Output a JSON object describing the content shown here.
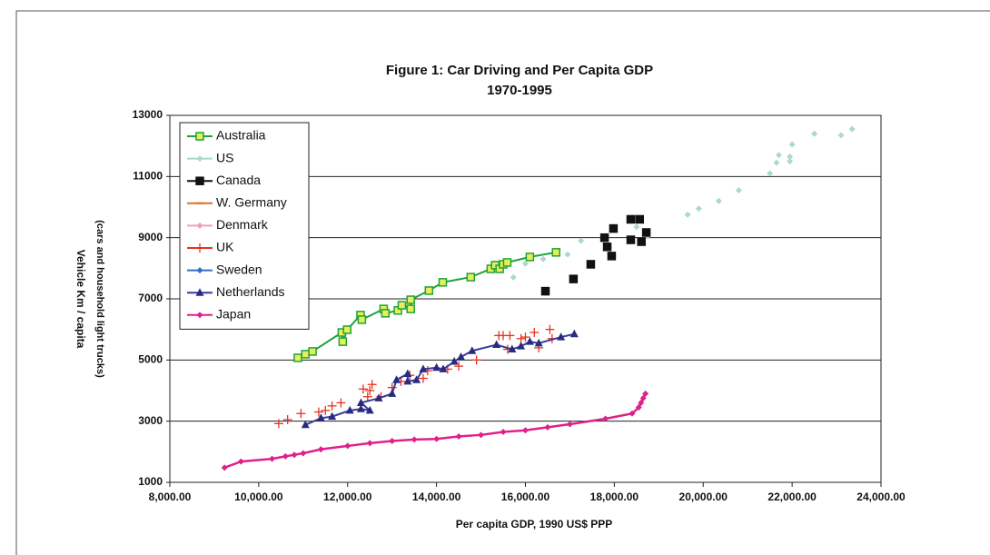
{
  "chart_data": {
    "type": "scatter",
    "title": "Figure 1: Car Driving and Per Capita GDP",
    "subtitle": "1970-1995",
    "x_label": "Per capita GDP, 1990 US$ PPP",
    "y_label": "Vehicle Km / capita",
    "y_label_2": "(cars and household light trucks)",
    "xlim": [
      8000,
      24000
    ],
    "ylim": [
      1000,
      13000
    ],
    "xticks": [
      {
        "value": 8000,
        "label": "8,000.00"
      },
      {
        "value": 10000,
        "label": "10,000.00"
      },
      {
        "value": 12000,
        "label": "12,000.00"
      },
      {
        "value": 14000,
        "label": "14,000.00"
      },
      {
        "value": 16000,
        "label": "16,000.00"
      },
      {
        "value": 18000,
        "label": "18,000.00"
      },
      {
        "value": 20000,
        "label": "20,000.00"
      },
      {
        "value": 22000,
        "label": "22,000.00"
      },
      {
        "value": 24000,
        "label": "24,000.00"
      }
    ],
    "yticks": [
      1000,
      3000,
      5000,
      7000,
      9000,
      11000,
      13000
    ],
    "grid": true,
    "legend": "top-left",
    "series": [
      {
        "name": "Australia",
        "color": "#1fa23a",
        "marker_fill": "#e6ef5a",
        "marker": "square",
        "line": true,
        "x": [
          10880,
          11050,
          11210,
          11870,
          11890,
          11990,
          12290,
          12320,
          12810,
          12850,
          13130,
          13220,
          13420,
          13420,
          13830,
          14140,
          14770,
          15220,
          15320,
          15420,
          15500,
          15590,
          16100,
          16690
        ],
        "values": [
          5070,
          5190,
          5280,
          5900,
          5600,
          5990,
          6470,
          6320,
          6670,
          6530,
          6620,
          6790,
          6670,
          6970,
          7270,
          7540,
          7710,
          7980,
          8100,
          7980,
          8130,
          8190,
          8370,
          8520
        ]
      },
      {
        "name": "US",
        "color": "#a9d9cf",
        "marker_fill": "#a9d9cf",
        "marker": "diamond",
        "line": false,
        "x": [
          15730,
          16000,
          16400,
          16950,
          17250,
          18500,
          18750,
          19650,
          19900,
          20350,
          20800,
          21500,
          21650,
          21700,
          21950,
          21950,
          22000,
          22500,
          23100,
          23350
        ],
        "values": [
          7700,
          8150,
          8300,
          8450,
          8900,
          9350,
          9050,
          9750,
          9950,
          10200,
          10550,
          11100,
          11450,
          11700,
          11500,
          11650,
          12050,
          12400,
          12350,
          12550
        ]
      },
      {
        "name": "Canada",
        "color": "#111111",
        "marker_fill": "#111111",
        "marker": "square",
        "line": false,
        "x": [
          16450,
          17080,
          17470,
          17780,
          17840,
          17940,
          17980,
          18370,
          18370,
          18570,
          18610,
          18720
        ],
        "values": [
          7250,
          7650,
          8130,
          9000,
          8700,
          8400,
          9300,
          9600,
          8930,
          9600,
          8870,
          9170
        ]
      },
      {
        "name": "W. Germany",
        "color": "#e07020",
        "marker_fill": "#e07020",
        "marker": "dash",
        "line": false,
        "x": [],
        "values": []
      },
      {
        "name": "Denmark",
        "color": "#f0a0b4",
        "marker_fill": "#f0a0b4",
        "marker": "diamond",
        "line": false,
        "x": [],
        "values": []
      },
      {
        "name": "UK",
        "color": "#e8321e",
        "marker_fill": "#e8321e",
        "marker": "plus",
        "line": false,
        "x": [
          10450,
          10650,
          10950,
          11350,
          11500,
          11650,
          11850,
          12350,
          12450,
          12500,
          12550,
          12750,
          13000,
          13200,
          13400,
          13700,
          13800,
          14250,
          14500,
          14900,
          15400,
          15500,
          15600,
          15650,
          15900,
          16000,
          16200,
          16550,
          16300,
          16600
        ],
        "values": [
          2920,
          3050,
          3250,
          3300,
          3350,
          3500,
          3600,
          4050,
          3800,
          4000,
          4200,
          3800,
          4100,
          4300,
          4500,
          4400,
          4650,
          4700,
          4800,
          5000,
          5800,
          5800,
          5350,
          5800,
          5700,
          5750,
          5900,
          6000,
          5400,
          5700
        ]
      },
      {
        "name": "Sweden",
        "color": "#3070c0",
        "marker_fill": "#3070c0",
        "marker": "diamond",
        "line": false,
        "x": [],
        "values": []
      },
      {
        "name": "Netherlands",
        "color": "#3a3a9a",
        "marker_fill": "#2a2a80",
        "marker": "triangle",
        "line": true,
        "x": [
          11050,
          11400,
          11650,
          12050,
          12300,
          12500,
          12300,
          12700,
          13000,
          13100,
          13350,
          13350,
          13550,
          13700,
          14000,
          14150,
          14400,
          14550,
          14800,
          15350,
          15700,
          15900,
          16100,
          16300,
          16800,
          17100
        ],
        "values": [
          2880,
          3100,
          3150,
          3350,
          3400,
          3350,
          3600,
          3750,
          3900,
          4350,
          4550,
          4300,
          4350,
          4700,
          4750,
          4700,
          4950,
          5100,
          5300,
          5500,
          5350,
          5450,
          5600,
          5550,
          5750,
          5850
        ]
      },
      {
        "name": "Japan",
        "color": "#e0208a",
        "marker_fill": "#e0208a",
        "marker": "diamond",
        "line": true,
        "x": [
          9230,
          9600,
          10300,
          10600,
          10800,
          11000,
          11400,
          12000,
          12500,
          13000,
          13500,
          14000,
          14500,
          15000,
          15500,
          16000,
          16500,
          17000,
          17800,
          18400,
          18550,
          18600,
          18650,
          18700
        ],
        "values": [
          1480,
          1680,
          1770,
          1850,
          1900,
          1950,
          2080,
          2190,
          2280,
          2350,
          2400,
          2420,
          2500,
          2550,
          2650,
          2700,
          2800,
          2900,
          3080,
          3250,
          3450,
          3600,
          3750,
          3900
        ]
      }
    ]
  }
}
